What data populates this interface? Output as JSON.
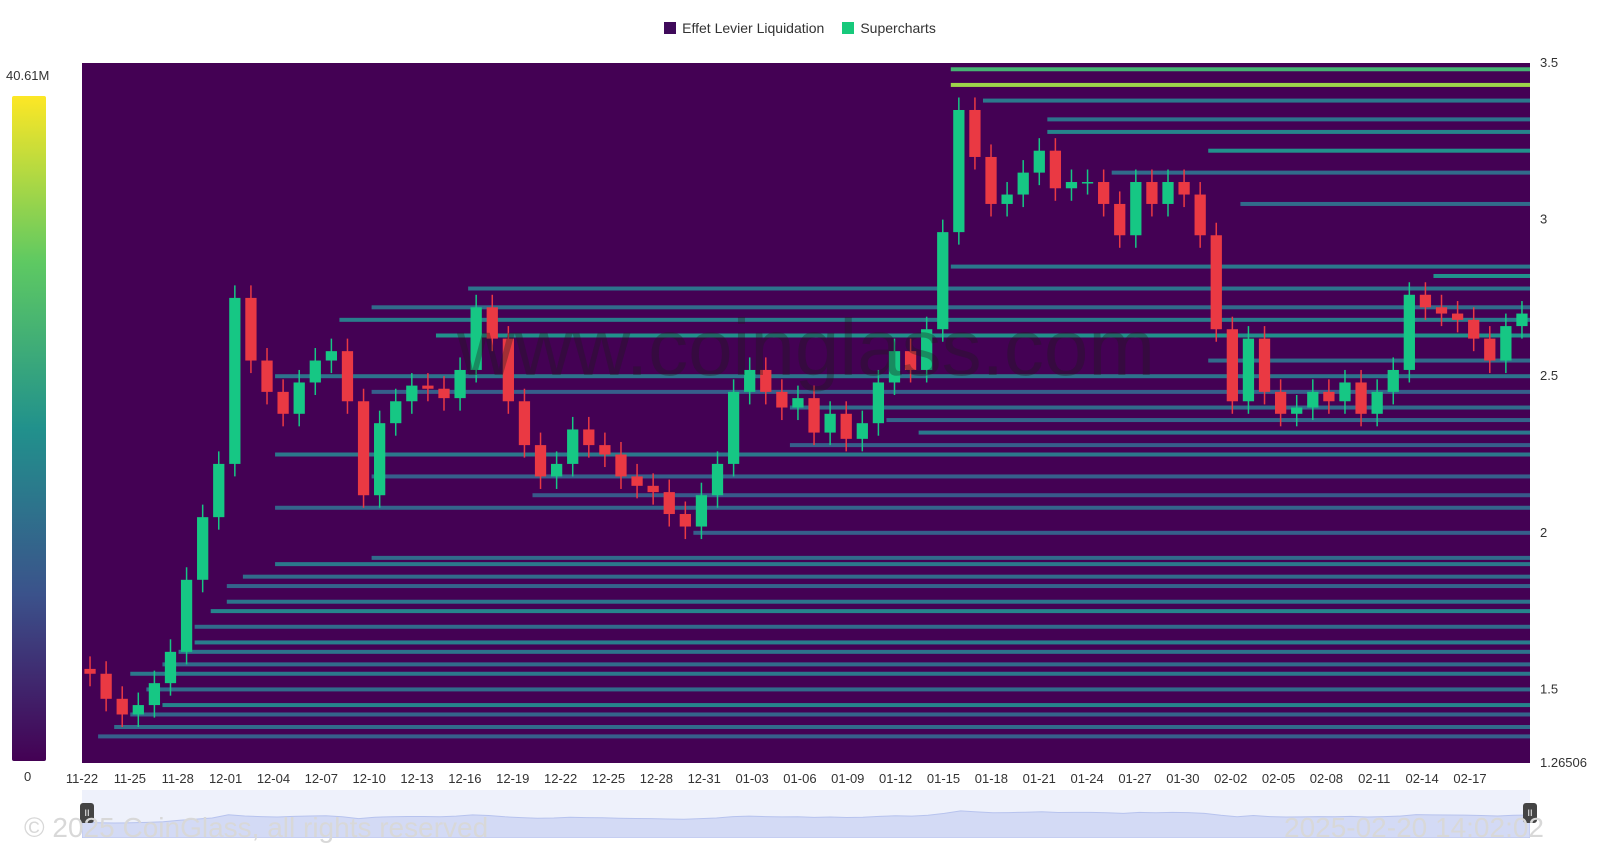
{
  "legend": {
    "items": [
      {
        "label": "Effet Levier Liquidation",
        "color": "#3f0a5a"
      },
      {
        "label": "Supercharts",
        "color": "#17c97b"
      }
    ]
  },
  "colorbar": {
    "max_label": "40.61M",
    "min_label": "0",
    "colors": [
      "#440154",
      "#3b528b",
      "#21918c",
      "#5ec962",
      "#fde725"
    ]
  },
  "footer": {
    "copyright": "© 2025 CoinGlass, all rights reserved",
    "timestamp": "2025-02-20 14:02:02"
  },
  "watermark": "www.coinglass.com",
  "chart_data": {
    "type": "heatmap",
    "x_tick_labels": [
      "11-22",
      "11-25",
      "11-28",
      "12-01",
      "12-04",
      "12-07",
      "12-10",
      "12-13",
      "12-16",
      "12-19",
      "12-22",
      "12-25",
      "12-28",
      "12-31",
      "01-03",
      "01-06",
      "01-09",
      "01-12",
      "01-15",
      "01-18",
      "01-21",
      "01-24",
      "01-27",
      "01-30",
      "02-02",
      "02-05",
      "02-08",
      "02-11",
      "02-14",
      "02-17"
    ],
    "y_tick_labels": [
      "3.5",
      "3",
      "2.5",
      "2",
      "1.5",
      "1.26506"
    ],
    "y_ticks": [
      3.5,
      3,
      2.5,
      2,
      1.5,
      1.26506
    ],
    "ylim": [
      1.26506,
      3.5
    ],
    "background_color": "#440154",
    "up_color": "#16c784",
    "down_color": "#ea3943",
    "price_closes": [
      1.55,
      1.47,
      1.42,
      1.45,
      1.52,
      1.62,
      1.85,
      2.05,
      2.22,
      2.75,
      2.55,
      2.45,
      2.38,
      2.48,
      2.55,
      2.58,
      2.42,
      2.12,
      2.35,
      2.42,
      2.47,
      2.46,
      2.43,
      2.52,
      2.72,
      2.62,
      2.42,
      2.28,
      2.18,
      2.22,
      2.33,
      2.28,
      2.25,
      2.18,
      2.15,
      2.13,
      2.06,
      2.02,
      2.12,
      2.22,
      2.45,
      2.52,
      2.45,
      2.4,
      2.43,
      2.32,
      2.38,
      2.3,
      2.35,
      2.48,
      2.58,
      2.52,
      2.65,
      2.96,
      3.35,
      3.2,
      3.05,
      3.08,
      3.15,
      3.22,
      3.1,
      3.12,
      3.12,
      3.05,
      2.95,
      3.12,
      3.05,
      3.12,
      3.08,
      2.95,
      2.65,
      2.42,
      2.62,
      2.45,
      2.38,
      2.4,
      2.45,
      2.42,
      2.48,
      2.38,
      2.45,
      2.52,
      2.76,
      2.72,
      2.7,
      2.68,
      2.62,
      2.55,
      2.66,
      2.7
    ],
    "liquidation_levels": [
      {
        "price": 3.48,
        "from_index": 54,
        "intensity": 0.65
      },
      {
        "price": 3.43,
        "from_index": 54,
        "intensity": 0.85
      },
      {
        "price": 3.38,
        "from_index": 56,
        "intensity": 0.4
      },
      {
        "price": 3.32,
        "from_index": 60,
        "intensity": 0.38
      },
      {
        "price": 3.28,
        "from_index": 60,
        "intensity": 0.45
      },
      {
        "price": 3.22,
        "from_index": 70,
        "intensity": 0.5
      },
      {
        "price": 3.15,
        "from_index": 64,
        "intensity": 0.35
      },
      {
        "price": 3.05,
        "from_index": 72,
        "intensity": 0.35
      },
      {
        "price": 2.85,
        "from_index": 54,
        "intensity": 0.4
      },
      {
        "price": 2.82,
        "from_index": 84,
        "intensity": 0.5
      },
      {
        "price": 2.78,
        "from_index": 24,
        "intensity": 0.38
      },
      {
        "price": 2.72,
        "from_index": 18,
        "intensity": 0.35
      },
      {
        "price": 2.68,
        "from_index": 16,
        "intensity": 0.42
      },
      {
        "price": 2.63,
        "from_index": 22,
        "intensity": 0.5
      },
      {
        "price": 2.55,
        "from_index": 70,
        "intensity": 0.35
      },
      {
        "price": 2.5,
        "from_index": 12,
        "intensity": 0.38
      },
      {
        "price": 2.45,
        "from_index": 18,
        "intensity": 0.3
      },
      {
        "price": 2.4,
        "from_index": 44,
        "intensity": 0.35
      },
      {
        "price": 2.36,
        "from_index": 50,
        "intensity": 0.32
      },
      {
        "price": 2.32,
        "from_index": 52,
        "intensity": 0.4
      },
      {
        "price": 2.28,
        "from_index": 44,
        "intensity": 0.3
      },
      {
        "price": 2.25,
        "from_index": 12,
        "intensity": 0.4
      },
      {
        "price": 2.18,
        "from_index": 18,
        "intensity": 0.3
      },
      {
        "price": 2.12,
        "from_index": 28,
        "intensity": 0.28
      },
      {
        "price": 2.08,
        "from_index": 12,
        "intensity": 0.32
      },
      {
        "price": 2.0,
        "from_index": 38,
        "intensity": 0.3
      },
      {
        "price": 1.92,
        "from_index": 18,
        "intensity": 0.35
      },
      {
        "price": 1.9,
        "from_index": 12,
        "intensity": 0.4
      },
      {
        "price": 1.86,
        "from_index": 10,
        "intensity": 0.35
      },
      {
        "price": 1.83,
        "from_index": 9,
        "intensity": 0.32
      },
      {
        "price": 1.78,
        "from_index": 9,
        "intensity": 0.38
      },
      {
        "price": 1.75,
        "from_index": 8,
        "intensity": 0.45
      },
      {
        "price": 1.7,
        "from_index": 7,
        "intensity": 0.35
      },
      {
        "price": 1.65,
        "from_index": 7,
        "intensity": 0.42
      },
      {
        "price": 1.62,
        "from_index": 6,
        "intensity": 0.38
      },
      {
        "price": 1.58,
        "from_index": 5,
        "intensity": 0.35
      },
      {
        "price": 1.55,
        "from_index": 3,
        "intensity": 0.4
      },
      {
        "price": 1.5,
        "from_index": 4,
        "intensity": 0.35
      },
      {
        "price": 1.45,
        "from_index": 5,
        "intensity": 0.45
      },
      {
        "price": 1.42,
        "from_index": 3,
        "intensity": 0.32
      },
      {
        "price": 1.38,
        "from_index": 2,
        "intensity": 0.35
      },
      {
        "price": 1.35,
        "from_index": 1,
        "intensity": 0.3
      }
    ]
  }
}
